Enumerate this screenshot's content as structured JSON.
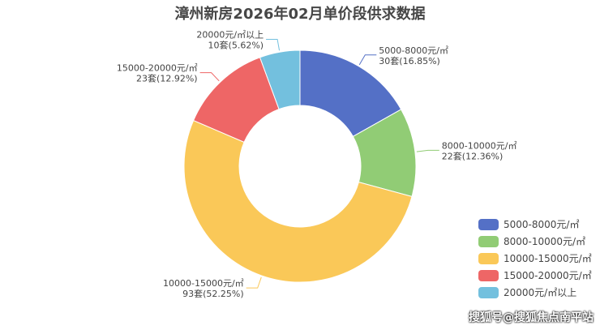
{
  "chart_data": {
    "type": "pie",
    "variant": "donut",
    "title": "漳州新房2026年02月单价段供求数据",
    "categories": [
      "5000-8000元/㎡",
      "8000-10000元/㎡",
      "10000-15000元/㎡",
      "15000-20000元/㎡",
      "20000元/㎡以上"
    ],
    "values": [
      30,
      22,
      93,
      23,
      10
    ],
    "percents": [
      "16.85%",
      "12.36%",
      "52.25%",
      "12.92%",
      "5.62%"
    ],
    "value_labels": [
      "30套(16.85%)",
      "22套(12.36%)",
      "93套(52.25%)",
      "23套(12.92%)",
      "10套(5.62%)"
    ],
    "colors": [
      "#5470c6",
      "#91cc75",
      "#fac858",
      "#ee6666",
      "#73c0de"
    ],
    "legend_position": "right"
  },
  "watermark": "搜狐号@搜狐焦点南平站"
}
